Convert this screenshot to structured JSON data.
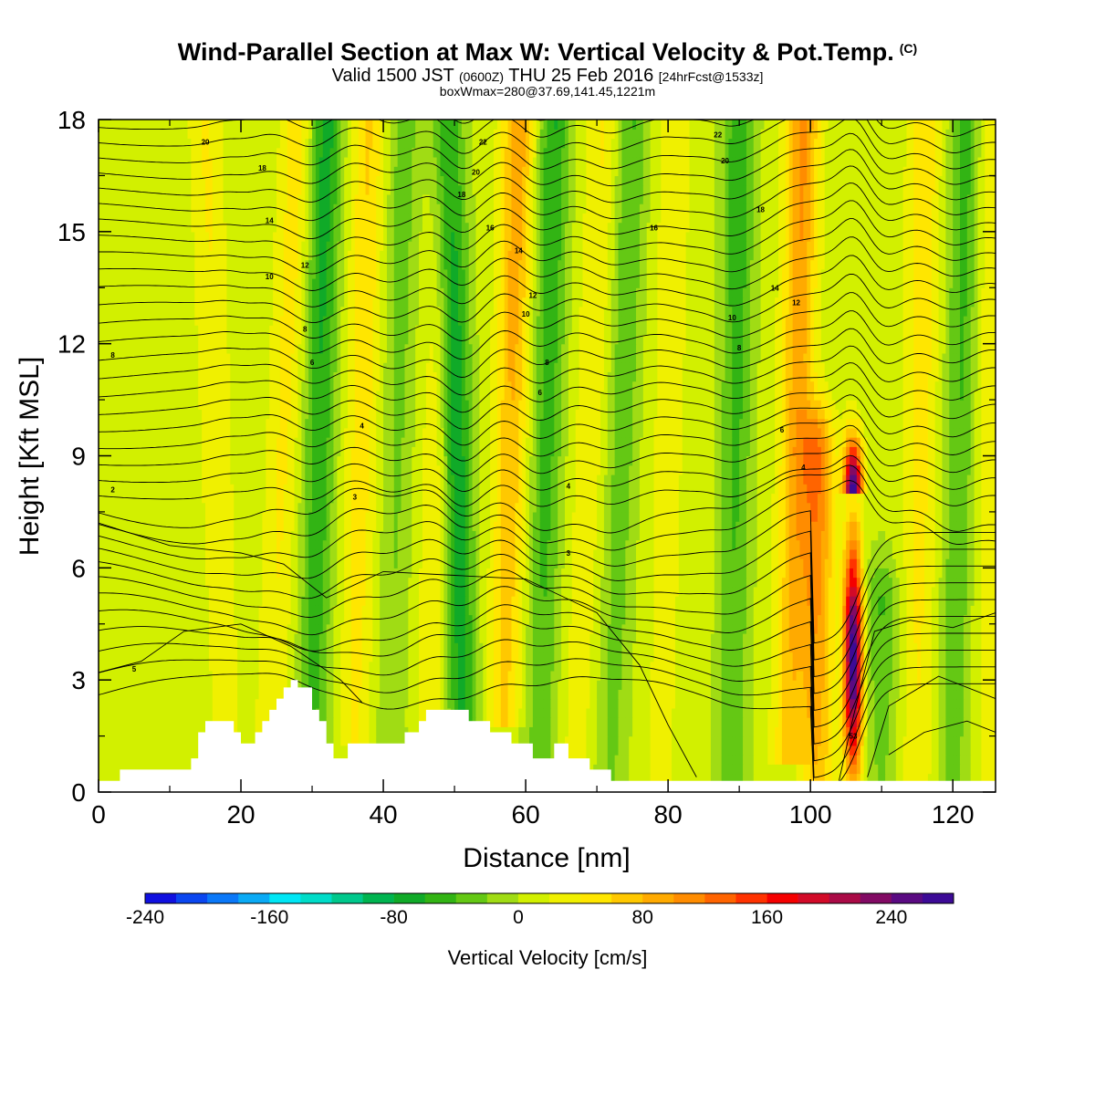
{
  "title": {
    "main": "Wind-Parallel Section at Max W: Vertical Velocity & Pot.Temp.",
    "mark": "(C)",
    "valid_pre": "Valid 1500 JST",
    "valid_utc": "(0600Z)",
    "valid_post": "THU 25 Feb 2016",
    "forecast": "[24hrFcst@1533z]",
    "box_info": "boxWmax=280@37.69,141.45,1221m"
  },
  "chart_data": {
    "type": "heatmap",
    "xlabel": "Distance [nm]",
    "ylabel": "Height [Kft MSL]",
    "xlim": [
      0,
      126
    ],
    "ylim": [
      0,
      18
    ],
    "x_ticks": [
      0,
      20,
      40,
      60,
      80,
      100,
      120
    ],
    "y_ticks": [
      0,
      3,
      6,
      9,
      12,
      15,
      18
    ],
    "colorbar": {
      "label": "Vertical Velocity [cm/s]",
      "range": [
        -240,
        280
      ],
      "step": 20,
      "tick_values": [
        -240,
        -160,
        -80,
        0,
        80,
        160,
        240
      ],
      "colors": [
        "#1010e0",
        "#0a46f0",
        "#0a78f8",
        "#0aaaf5",
        "#00e6f5",
        "#00dcc8",
        "#00c88c",
        "#00b450",
        "#10aa28",
        "#32b414",
        "#64c814",
        "#a0dc14",
        "#d2f000",
        "#f0f000",
        "#ffe600",
        "#ffc800",
        "#ffaa00",
        "#ff8c00",
        "#ff6400",
        "#ff3200",
        "#f50000",
        "#d20a28",
        "#aa0a46",
        "#820a64",
        "#5a0a82",
        "#3c0a96"
      ]
    },
    "vertical_velocity_features": [
      {
        "x": 18,
        "base_kft": 0.8,
        "top_kft": 18,
        "w": 35,
        "tilt_nm": -3
      },
      {
        "x": 24,
        "base_kft": 0.8,
        "top_kft": 18,
        "w": 45,
        "tilt_nm": 4
      },
      {
        "x": 30,
        "base_kft": 0.5,
        "top_kft": 18,
        "w": -80,
        "tilt_nm": 2
      },
      {
        "x": 36,
        "base_kft": 1.5,
        "top_kft": 18,
        "w": 55,
        "tilt_nm": 2
      },
      {
        "x": 41,
        "base_kft": 1.5,
        "top_kft": 18,
        "w": -40,
        "tilt_nm": 2
      },
      {
        "x": 47,
        "base_kft": 2.0,
        "top_kft": 18,
        "w": 55,
        "tilt_nm": 2
      },
      {
        "x": 51,
        "base_kft": 2.0,
        "top_kft": 18,
        "w": -120,
        "tilt_nm": -2
      },
      {
        "x": 57,
        "base_kft": 2.0,
        "top_kft": 18,
        "w": 90,
        "tilt_nm": 2
      },
      {
        "x": 62,
        "base_kft": 1.0,
        "top_kft": 18,
        "w": -70,
        "tilt_nm": 2
      },
      {
        "x": 67,
        "base_kft": 1.0,
        "top_kft": 18,
        "w": 35,
        "tilt_nm": 4
      },
      {
        "x": 72,
        "base_kft": 0.5,
        "top_kft": 18,
        "w": -50,
        "tilt_nm": 3
      },
      {
        "x": 79,
        "base_kft": 0.5,
        "top_kft": 18,
        "w": 30,
        "tilt_nm": 2
      },
      {
        "x": 89,
        "base_kft": 0.5,
        "top_kft": 18,
        "w": -65,
        "tilt_nm": 1
      },
      {
        "x": 97,
        "base_kft": 1.0,
        "top_kft": 18,
        "w": 100,
        "tilt_nm": 2
      },
      {
        "x": 101,
        "base_kft": 0.2,
        "top_kft": 9,
        "w": 110,
        "tilt_nm": 0
      },
      {
        "x": 106,
        "base_kft": 0.3,
        "top_kft": 8,
        "w": 270,
        "tilt_nm": 0
      },
      {
        "x": 110,
        "base_kft": 0.5,
        "top_kft": 5,
        "w": -50,
        "tilt_nm": 0
      },
      {
        "x": 115,
        "base_kft": 0.5,
        "top_kft": 18,
        "w": 50,
        "tilt_nm": 1
      },
      {
        "x": 120,
        "base_kft": 0.5,
        "top_kft": 18,
        "w": -60,
        "tilt_nm": 2
      },
      {
        "x": 125,
        "base_kft": 0.5,
        "top_kft": 18,
        "w": 30,
        "tilt_nm": 0
      }
    ],
    "terrain_kft": [
      [
        0,
        0.3
      ],
      [
        3,
        0.3
      ],
      [
        3,
        0.6
      ],
      [
        13,
        0.6
      ],
      [
        13,
        0.9
      ],
      [
        14,
        0.9
      ],
      [
        14,
        1.6
      ],
      [
        15,
        1.6
      ],
      [
        15,
        1.9
      ],
      [
        19,
        1.9
      ],
      [
        19,
        1.6
      ],
      [
        20,
        1.6
      ],
      [
        20,
        1.3
      ],
      [
        22,
        1.3
      ],
      [
        22,
        1.6
      ],
      [
        23,
        1.6
      ],
      [
        23,
        1.9
      ],
      [
        24,
        1.9
      ],
      [
        24,
        2.2
      ],
      [
        25,
        2.2
      ],
      [
        25,
        2.5
      ],
      [
        26,
        2.5
      ],
      [
        26,
        2.8
      ],
      [
        27,
        2.8
      ],
      [
        27,
        3.0
      ],
      [
        28,
        3.0
      ],
      [
        28,
        2.8
      ],
      [
        30,
        2.8
      ],
      [
        30,
        2.2
      ],
      [
        31,
        2.2
      ],
      [
        31,
        1.9
      ],
      [
        32,
        1.9
      ],
      [
        32,
        1.3
      ],
      [
        33,
        1.3
      ],
      [
        33,
        0.9
      ],
      [
        35,
        0.9
      ],
      [
        35,
        1.3
      ],
      [
        43,
        1.3
      ],
      [
        43,
        1.6
      ],
      [
        45,
        1.6
      ],
      [
        45,
        1.9
      ],
      [
        46,
        1.9
      ],
      [
        46,
        2.2
      ],
      [
        52,
        2.2
      ],
      [
        52,
        1.9
      ],
      [
        55,
        1.9
      ],
      [
        55,
        1.6
      ],
      [
        58,
        1.6
      ],
      [
        58,
        1.3
      ],
      [
        61,
        1.3
      ],
      [
        61,
        0.9
      ],
      [
        64,
        0.9
      ],
      [
        64,
        1.3
      ],
      [
        66,
        1.3
      ],
      [
        66,
        0.9
      ],
      [
        69,
        0.9
      ],
      [
        69,
        0.6
      ],
      [
        72,
        0.6
      ],
      [
        72,
        0.3
      ],
      [
        126,
        0.3
      ]
    ],
    "isentrope_labels": [
      {
        "x": 15,
        "y": 17.4,
        "text": "20"
      },
      {
        "x": 23,
        "y": 16.7,
        "text": "18"
      },
      {
        "x": 24,
        "y": 15.3,
        "text": "14"
      },
      {
        "x": 24,
        "y": 13.8,
        "text": "10"
      },
      {
        "x": 29,
        "y": 14.1,
        "text": "12"
      },
      {
        "x": 29,
        "y": 12.4,
        "text": "8"
      },
      {
        "x": 30,
        "y": 11.5,
        "text": "6"
      },
      {
        "x": 37,
        "y": 9.8,
        "text": "4"
      },
      {
        "x": 36,
        "y": 7.9,
        "text": "3"
      },
      {
        "x": 2,
        "y": 8.1,
        "text": "2"
      },
      {
        "x": 2,
        "y": 11.7,
        "text": "8"
      },
      {
        "x": 5,
        "y": 3.3,
        "text": "5"
      },
      {
        "x": 54,
        "y": 17.4,
        "text": "22"
      },
      {
        "x": 53,
        "y": 16.6,
        "text": "20"
      },
      {
        "x": 51,
        "y": 16.0,
        "text": "18"
      },
      {
        "x": 55,
        "y": 15.1,
        "text": "16"
      },
      {
        "x": 59,
        "y": 14.5,
        "text": "14"
      },
      {
        "x": 61,
        "y": 13.3,
        "text": "12"
      },
      {
        "x": 60,
        "y": 12.8,
        "text": "10"
      },
      {
        "x": 63,
        "y": 11.5,
        "text": "8"
      },
      {
        "x": 62,
        "y": 10.7,
        "text": "6"
      },
      {
        "x": 66,
        "y": 8.2,
        "text": "4"
      },
      {
        "x": 66,
        "y": 6.4,
        "text": "3"
      },
      {
        "x": 78,
        "y": 15.1,
        "text": "16"
      },
      {
        "x": 87,
        "y": 17.6,
        "text": "22"
      },
      {
        "x": 88,
        "y": 16.9,
        "text": "20"
      },
      {
        "x": 93,
        "y": 15.6,
        "text": "18"
      },
      {
        "x": 89,
        "y": 12.7,
        "text": "10"
      },
      {
        "x": 90,
        "y": 11.9,
        "text": "8"
      },
      {
        "x": 95,
        "y": 13.5,
        "text": "14"
      },
      {
        "x": 98,
        "y": 13.1,
        "text": "12"
      },
      {
        "x": 96,
        "y": 9.7,
        "text": "6"
      },
      {
        "x": 99,
        "y": 8.7,
        "text": "4"
      },
      {
        "x": 106,
        "y": 1.5,
        "text": "53"
      }
    ]
  }
}
